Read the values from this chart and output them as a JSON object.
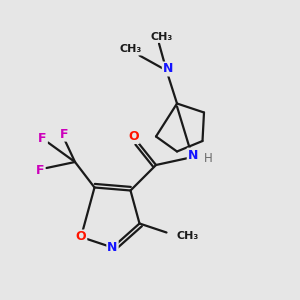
{
  "bg_color": "#e6e6e6",
  "bond_color": "#1a1a1a",
  "N_color": "#1414ff",
  "O_color": "#ff1400",
  "F_color": "#cc00bb",
  "H_color": "#6a6a6a",
  "line_width": 1.6,
  "figsize": [
    3.0,
    3.0
  ],
  "dpi": 100,
  "xlim": [
    0,
    10
  ],
  "ylim": [
    0,
    10
  ]
}
